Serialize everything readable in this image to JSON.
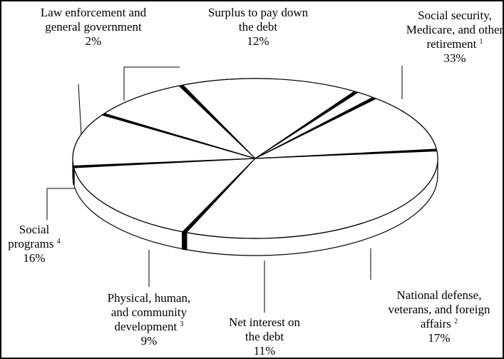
{
  "chart_data": {
    "type": "pie",
    "style": "3d-exploded-wedge-lines",
    "colors": {
      "fill": "#ffffff",
      "stroke": "#000000",
      "separator": "#000000"
    },
    "slices": [
      {
        "id": "social-security",
        "value": 33,
        "pct": "33%",
        "lines": [
          "Social security,",
          "Medicare, and other",
          "retirement"
        ],
        "note": "1"
      },
      {
        "id": "national-defense",
        "value": 17,
        "pct": "17%",
        "lines": [
          "National defense,",
          "veterans, and foreign",
          "affairs"
        ],
        "note": "2"
      },
      {
        "id": "net-interest",
        "value": 11,
        "pct": "11%",
        "lines": [
          "Net interest on",
          "the debt"
        ],
        "note": ""
      },
      {
        "id": "physical-human",
        "value": 9,
        "pct": "9%",
        "lines": [
          "Physical, human,",
          "and community",
          "development"
        ],
        "note": "3"
      },
      {
        "id": "social-programs",
        "value": 16,
        "pct": "16%",
        "lines": [
          "Social",
          "programs"
        ],
        "note": "4"
      },
      {
        "id": "law-enforcement",
        "value": 2,
        "pct": "2%",
        "lines": [
          "Law enforcement and",
          "general government"
        ],
        "note": ""
      },
      {
        "id": "surplus",
        "value": 12,
        "pct": "12%",
        "lines": [
          "Surplus to pay down",
          "the debt"
        ],
        "note": ""
      }
    ]
  }
}
